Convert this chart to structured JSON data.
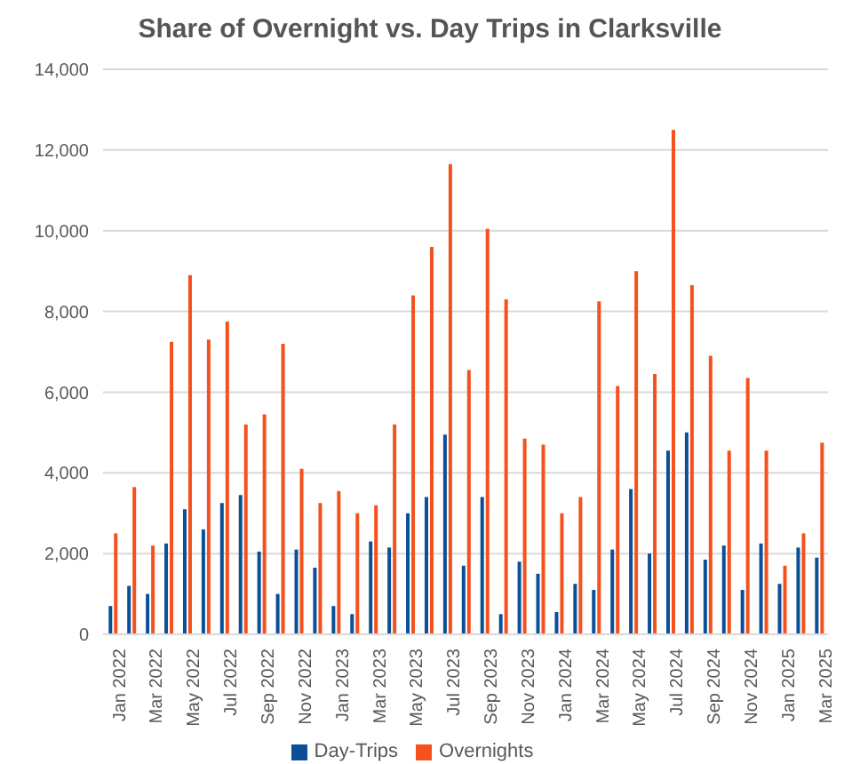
{
  "chart_data": {
    "type": "bar",
    "title": "Share of Overnight vs. Day Trips in Clarksville",
    "categories": [
      "Jan 2022",
      null,
      "Mar 2022",
      null,
      "May 2022",
      null,
      "Jul 2022",
      null,
      "Sep 2022",
      null,
      "Nov 2022",
      null,
      "Jan 2023",
      null,
      "Mar 2023",
      null,
      "May 2023",
      null,
      "Jul 2023",
      null,
      "Sep 2023",
      null,
      "Nov 2023",
      null,
      "Jan 2024",
      null,
      "Mar 2024",
      null,
      "May 2024",
      null,
      "Jul 2024",
      null,
      "Sep 2024",
      null,
      "Nov 2024",
      null,
      "Jan 2025",
      null,
      "Mar 2025"
    ],
    "series": [
      {
        "name": "Day-Trips",
        "color": "#0b4f96",
        "values": [
          700,
          1200,
          1000,
          2250,
          3100,
          2600,
          3250,
          3450,
          2050,
          1000,
          2100,
          1650,
          700,
          500,
          2300,
          2150,
          3000,
          3400,
          4950,
          1700,
          3400,
          500,
          1800,
          1500,
          550,
          1250,
          1100,
          2100,
          3600,
          2000,
          4550,
          5000,
          1850,
          2200,
          1100,
          2250,
          1250,
          2150,
          1900
        ]
      },
      {
        "name": "Overnights",
        "color": "#f4511e",
        "values": [
          2500,
          3650,
          2200,
          7250,
          8900,
          7300,
          7750,
          5200,
          5450,
          7200,
          4100,
          3250,
          3550,
          3000,
          3200,
          5200,
          8400,
          9600,
          11650,
          6550,
          10050,
          8300,
          4850,
          4700,
          3000,
          3400,
          8250,
          6150,
          9000,
          6450,
          12500,
          8650,
          6900,
          4550,
          6350,
          4550,
          1700,
          2500,
          4750
        ]
      }
    ],
    "ylim": [
      0,
      14000
    ],
    "yticks": [
      0,
      {
        "value": 2000,
        "label": "2,000"
      },
      {
        "value": 4000,
        "label": "4,000"
      },
      {
        "value": 6000,
        "label": "6,000"
      },
      {
        "value": 8000,
        "label": "8,000"
      },
      {
        "value": 10000,
        "label": "10,000"
      },
      {
        "value": 12000,
        "label": "12,000"
      },
      {
        "value": 14000,
        "label": "14,000"
      }
    ],
    "grid": "y",
    "legend": "bottom"
  }
}
